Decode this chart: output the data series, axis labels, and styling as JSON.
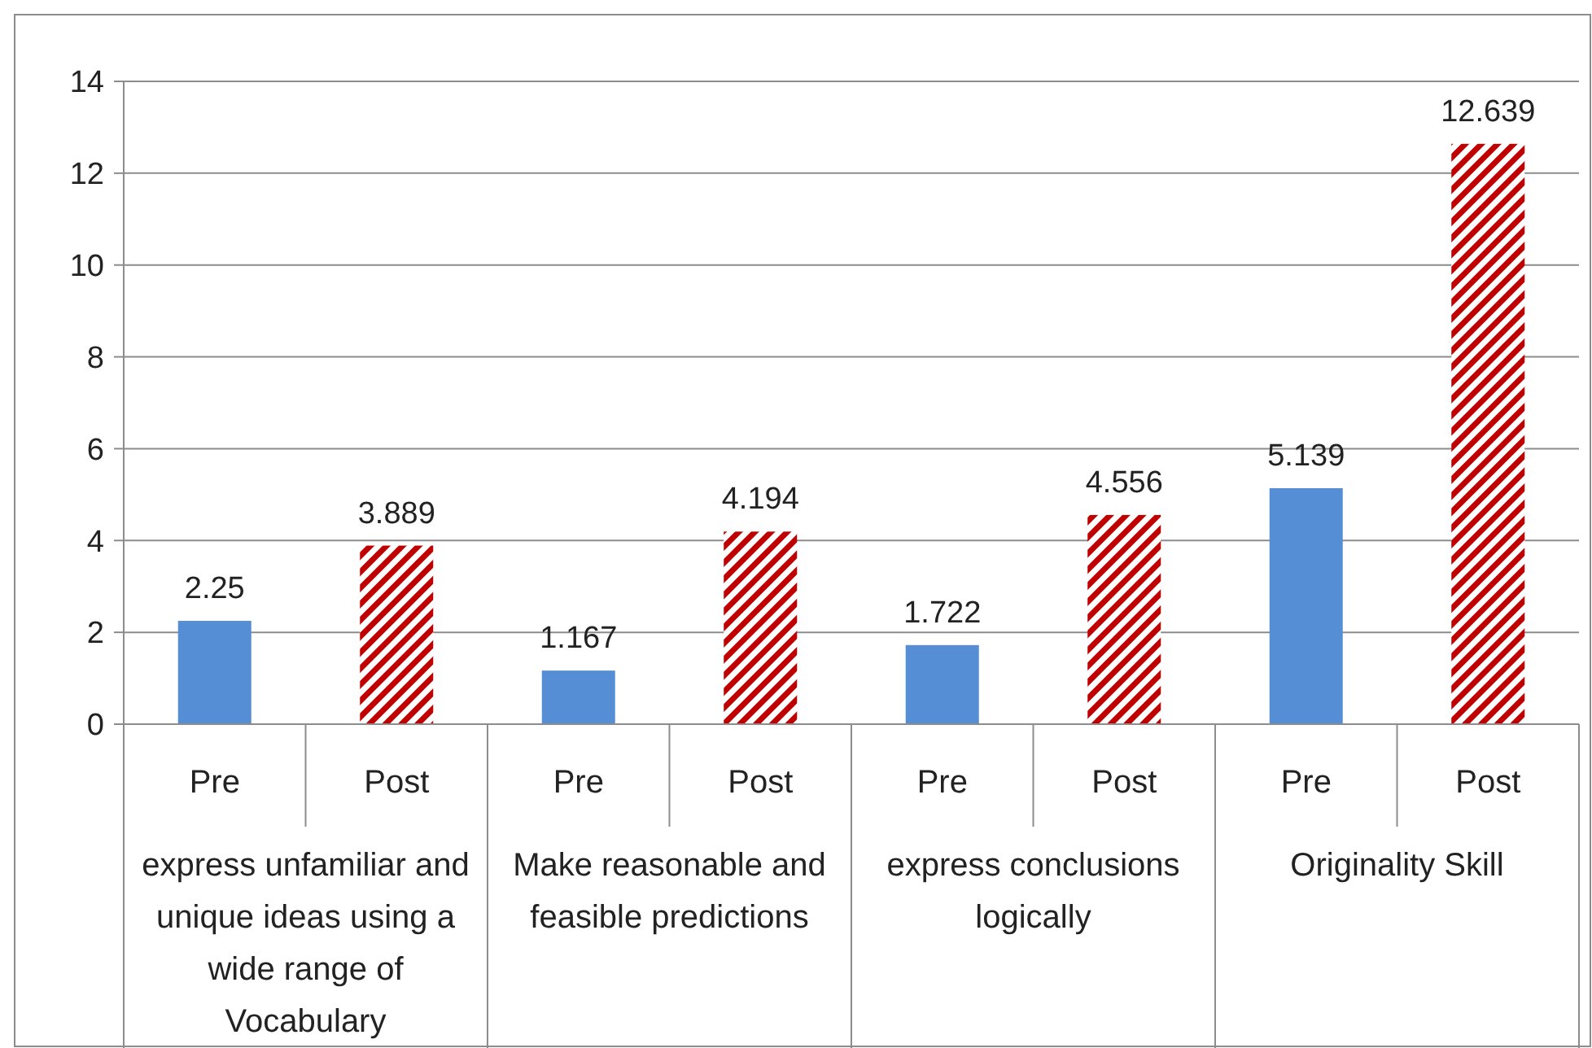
{
  "chart_data": {
    "type": "bar",
    "categories": [
      "express unfamiliar and unique ideas using a wide range of Vocabulary",
      "Make reasonable and feasible predictions",
      "express conclusions logically",
      "Originality Skill"
    ],
    "series": [
      {
        "name": "Pre",
        "color": "#558ed5",
        "values": [
          2.25,
          1.167,
          1.722,
          5.139
        ]
      },
      {
        "name": "Post",
        "color": "#c00000",
        "values": [
          3.889,
          4.194,
          4.556,
          12.639
        ]
      }
    ],
    "ylim": [
      0,
      14
    ],
    "yticks": [
      0,
      2,
      4,
      6,
      8,
      10,
      12,
      14
    ],
    "grid": "y",
    "data_labels": true
  }
}
